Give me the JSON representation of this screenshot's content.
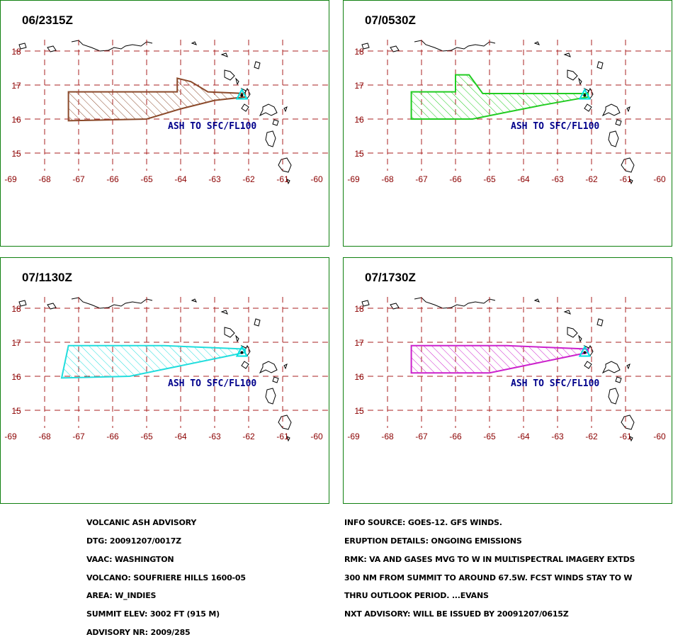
{
  "panels": [
    {
      "time": "06/2315Z",
      "color": "#8b4a2b",
      "poly": [
        [
          -67.3,
          16.8
        ],
        [
          -64.1,
          16.8
        ],
        [
          -64.1,
          17.2
        ],
        [
          -63.7,
          17.1
        ],
        [
          -63.2,
          16.8
        ],
        [
          -62.1,
          16.75
        ],
        [
          -62.1,
          16.65
        ],
        [
          -63.0,
          16.55
        ],
        [
          -64.0,
          16.3
        ],
        [
          -65.0,
          16.0
        ],
        [
          -67.3,
          15.95
        ]
      ]
    },
    {
      "time": "07/0530Z",
      "color": "#22cc22",
      "poly": [
        [
          -67.3,
          16.8
        ],
        [
          -66.0,
          16.8
        ],
        [
          -66.0,
          17.3
        ],
        [
          -65.6,
          17.3
        ],
        [
          -65.2,
          16.75
        ],
        [
          -62.1,
          16.75
        ],
        [
          -62.1,
          16.65
        ],
        [
          -63.5,
          16.4
        ],
        [
          -64.5,
          16.2
        ],
        [
          -65.5,
          16.0
        ],
        [
          -67.3,
          16.0
        ]
      ]
    },
    {
      "time": "07/1130Z",
      "color": "#22dddd",
      "poly": [
        [
          -67.3,
          16.9
        ],
        [
          -64.5,
          16.9
        ],
        [
          -62.1,
          16.8
        ],
        [
          -62.1,
          16.7
        ],
        [
          -65.5,
          16.0
        ],
        [
          -67.5,
          15.95
        ]
      ]
    },
    {
      "time": "07/1730Z",
      "color": "#cc22cc",
      "poly": [
        [
          -67.3,
          16.9
        ],
        [
          -64.5,
          16.9
        ],
        [
          -62.1,
          16.8
        ],
        [
          -62.1,
          16.7
        ],
        [
          -65.0,
          16.1
        ],
        [
          -67.3,
          16.1
        ]
      ]
    }
  ],
  "map": {
    "x_labels": [
      "-69",
      "-68",
      "-67",
      "-66",
      "-65",
      "-64",
      "-63",
      "-62",
      "-61",
      "-60"
    ],
    "y_labels": [
      "18",
      "17",
      "16",
      "15"
    ],
    "ash_label": "ASH TO SFC/FL100",
    "grid_color": "#aa2222",
    "label_color": "#8b0000",
    "ash_label_color": "#00008b",
    "volcano_color": "#00e0e0"
  },
  "advisory_left": [
    "VOLCANIC ASH ADVISORY",
    "DTG: 20091207/0017Z",
    "VAAC: WASHINGTON",
    "VOLCANO: SOUFRIERE HILLS 1600-05",
    "AREA: W_INDIES",
    "SUMMIT ELEV: 3002 FT (915 M)",
    "ADVISORY NR: 2009/285"
  ],
  "advisory_right": [
    "INFO SOURCE: GOES-12. GFS WINDS.",
    "ERUPTION DETAILS: ONGOING EMISSIONS",
    "RMK: VA AND GASES MVG TO W IN MULTISPECTRAL IMAGERY EXTDS",
    "300 NM FROM SUMMIT TO AROUND 67.5W. FCST WINDS STAY TO W",
    "THRU OUTLOOK PERIOD. ...EVANS",
    "NXT ADVISORY: WILL BE ISSUED BY 20091207/0615Z"
  ]
}
